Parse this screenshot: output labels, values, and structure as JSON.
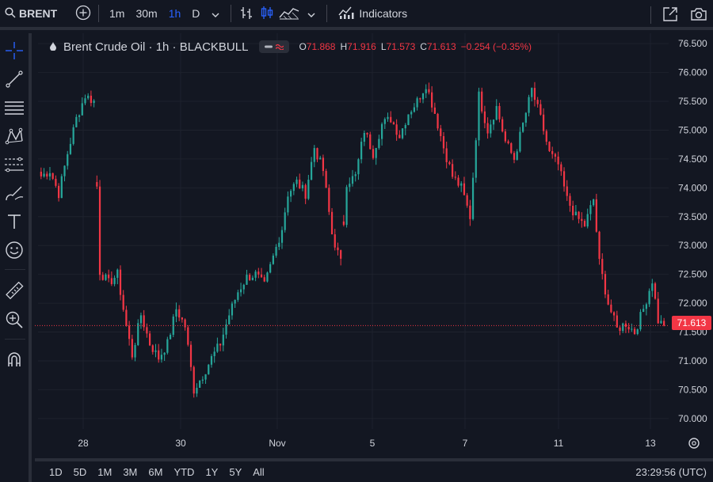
{
  "toolbar": {
    "symbol": "BRENT",
    "intervals": [
      {
        "label": "1m",
        "active": false
      },
      {
        "label": "30m",
        "active": false
      },
      {
        "label": "1h",
        "active": true
      },
      {
        "label": "D",
        "active": false
      }
    ],
    "indicators_label": "Indicators",
    "icons": [
      "search-icon",
      "add-symbol-icon",
      "chevron-down-icon",
      "bar-style-icon",
      "candles-icon",
      "area-icon",
      "chevron-down-icon",
      "indicators-icon",
      "fullscreen-icon",
      "camera-icon"
    ]
  },
  "left_toolbar": {
    "icons": [
      "crosshair-icon",
      "trend-line-icon",
      "horizontal-lines-icon",
      "pattern-icon",
      "fib-icon",
      "brush-icon",
      "text-icon",
      "emoji-icon",
      "ruler-icon",
      "zoom-icon",
      "magnet-icon"
    ]
  },
  "legend": {
    "title": "Brent Crude Oil · 1h · BLACKBULL",
    "open_label": "O",
    "open": "71.868",
    "high_label": "H",
    "high": "71.916",
    "low_label": "L",
    "low": "71.573",
    "close_label": "C",
    "close": "71.613",
    "change": "−0.254 (−0.35%)"
  },
  "price_tag": "71.613",
  "bottom_bar": {
    "ranges": [
      "1D",
      "5D",
      "1M",
      "3M",
      "6M",
      "YTD",
      "1Y",
      "5Y",
      "All"
    ],
    "clock": "23:29:56 (UTC)"
  },
  "colors": {
    "background": "#131722",
    "up": "#26a69a",
    "down": "#f23645",
    "grid": "#1e222d",
    "accent": "#2962ff"
  },
  "chart_data": {
    "type": "candlestick",
    "title": "Brent Crude Oil · 1h · BLACKBULL",
    "y_ticks": [
      "70.000",
      "70.500",
      "71.000",
      "71.500",
      "72.000",
      "72.500",
      "73.000",
      "73.500",
      "74.000",
      "74.500",
      "75.000",
      "75.500",
      "76.000",
      "76.500"
    ],
    "x_ticks": [
      "28",
      "30",
      "Nov",
      "5",
      "7",
      "11",
      "13"
    ],
    "ylim": [
      69.82,
      76.68
    ],
    "last_price": 71.613,
    "anchors": [
      [
        0,
        74.2
      ],
      [
        3,
        74.3
      ],
      [
        6,
        73.9
      ],
      [
        9,
        74.6
      ],
      [
        12,
        75.2
      ],
      [
        15,
        75.6
      ],
      [
        18,
        75.5
      ],
      [
        20,
        72.55
      ],
      [
        23,
        72.35
      ],
      [
        26,
        72.5
      ],
      [
        29,
        71.6
      ],
      [
        31,
        71.1
      ],
      [
        34,
        71.8
      ],
      [
        37,
        71.3
      ],
      [
        40,
        71.05
      ],
      [
        43,
        71.3
      ],
      [
        46,
        71.9
      ],
      [
        49,
        71.6
      ],
      [
        52,
        70.5
      ],
      [
        55,
        70.75
      ],
      [
        58,
        71.05
      ],
      [
        61,
        71.3
      ],
      [
        64,
        71.8
      ],
      [
        67,
        72.2
      ],
      [
        70,
        72.45
      ],
      [
        73,
        72.5
      ],
      [
        76,
        72.3
      ],
      [
        79,
        72.8
      ],
      [
        82,
        73.3
      ],
      [
        84,
        73.9
      ],
      [
        87,
        74.1
      ],
      [
        90,
        73.9
      ],
      [
        93,
        74.7
      ],
      [
        96,
        74.3
      ],
      [
        99,
        73.2
      ],
      [
        102,
        72.7
      ],
      [
        104,
        74.1
      ],
      [
        107,
        74.2
      ],
      [
        110,
        75.0
      ],
      [
        113,
        74.6
      ],
      [
        116,
        75.1
      ],
      [
        119,
        75.2
      ],
      [
        122,
        74.9
      ],
      [
        125,
        75.3
      ],
      [
        128,
        75.5
      ],
      [
        131,
        75.8
      ],
      [
        134,
        75.3
      ],
      [
        137,
        74.7
      ],
      [
        140,
        74.2
      ],
      [
        143,
        74.0
      ],
      [
        146,
        73.5
      ],
      [
        149,
        75.6
      ],
      [
        152,
        75.0
      ],
      [
        155,
        75.4
      ],
      [
        158,
        74.8
      ],
      [
        161,
        74.5
      ],
      [
        164,
        75.1
      ],
      [
        167,
        75.7
      ],
      [
        170,
        75.2
      ],
      [
        173,
        74.6
      ],
      [
        176,
        74.4
      ],
      [
        179,
        73.8
      ],
      [
        182,
        73.5
      ],
      [
        185,
        73.35
      ],
      [
        188,
        73.8
      ],
      [
        190,
        72.7
      ],
      [
        193,
        72.0
      ],
      [
        196,
        71.55
      ],
      [
        199,
        71.65
      ],
      [
        202,
        71.5
      ],
      [
        205,
        71.9
      ],
      [
        208,
        72.4
      ],
      [
        210,
        71.7
      ],
      [
        212,
        71.6
      ]
    ],
    "gaps": [
      19,
      103
    ]
  }
}
